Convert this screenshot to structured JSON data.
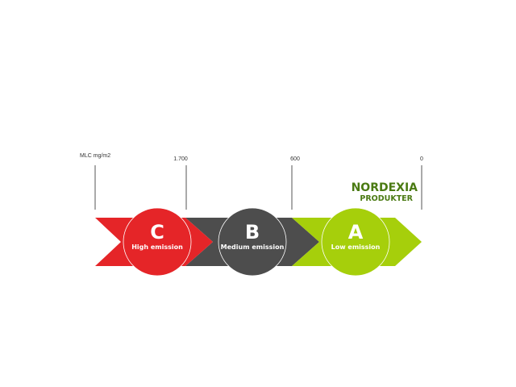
{
  "scale": {
    "unit_label": "MLC mg/m2",
    "ticks": [
      "1.700",
      "600",
      "0"
    ]
  },
  "brand": {
    "line1": "NORDEXIA",
    "line2": "PRODUKTER"
  },
  "classes": [
    {
      "letter": "C",
      "label": "High emission",
      "color": "#e52528"
    },
    {
      "letter": "B",
      "label": "Medium emission",
      "color": "#4d4d4d"
    },
    {
      "letter": "A",
      "label": "Low emission",
      "color": "#a6cf0b"
    }
  ]
}
